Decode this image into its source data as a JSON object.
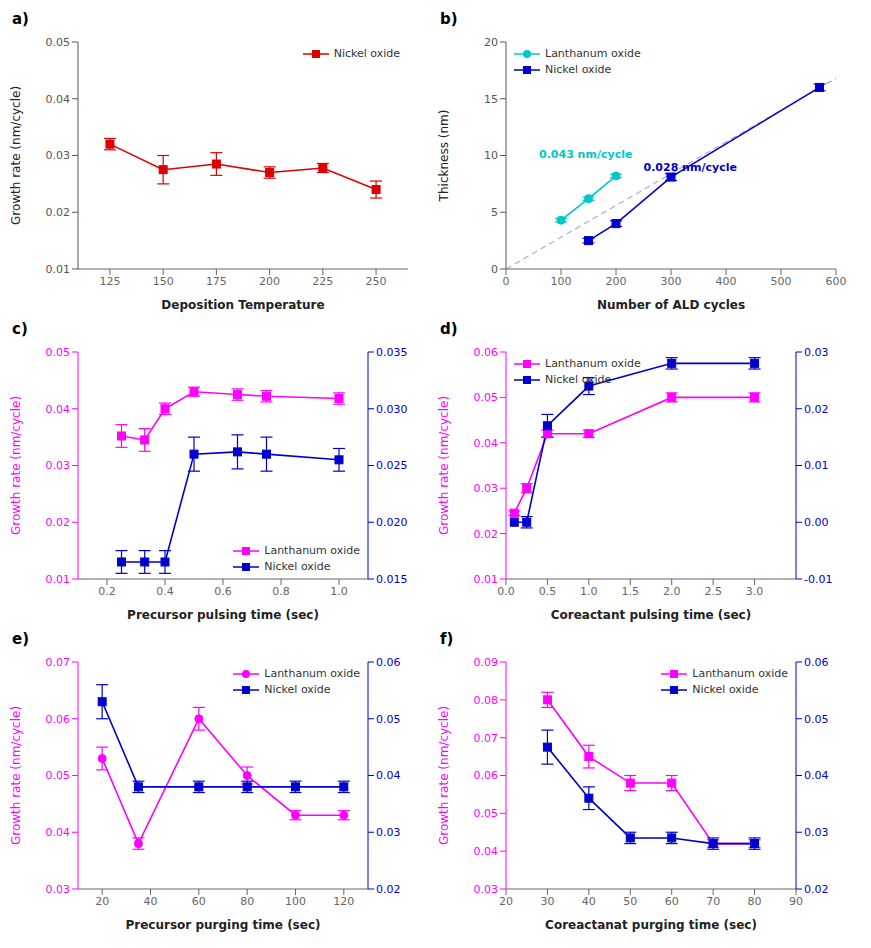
{
  "chart_data": [
    {
      "type": "line",
      "title": "a)",
      "xlabel": "Deposition Temperature",
      "ylabel": "Growth rate (nm/cycle)",
      "xlim": [
        110,
        265
      ],
      "xticks": [
        125,
        150,
        175,
        200,
        225,
        250
      ],
      "ylim": [
        0.01,
        0.05
      ],
      "yticks": [
        0.01,
        0.02,
        0.03,
        0.04,
        0.05
      ],
      "legend": "upper right",
      "series": [
        {
          "name": "Nickel oxide",
          "color": "#dd0000",
          "marker": "square",
          "x": [
            125,
            150,
            175,
            200,
            225,
            250
          ],
          "values": [
            0.032,
            0.0275,
            0.0285,
            0.027,
            0.0278,
            0.024
          ],
          "errors": [
            0.001,
            0.0025,
            0.002,
            0.001,
            0.0008,
            0.0015
          ]
        }
      ]
    },
    {
      "type": "line",
      "title": "b)",
      "xlabel": "Number of ALD cycles",
      "ylabel": "Thickness (nm)",
      "xlim": [
        0,
        600
      ],
      "xticks": [
        0,
        100,
        200,
        300,
        400,
        500,
        600
      ],
      "ylim": [
        0,
        20
      ],
      "yticks": [
        0,
        5,
        10,
        15,
        20
      ],
      "legend": "upper left",
      "series": [
        {
          "color": "#aaaadd",
          "line_style": "dashed",
          "marker": "none",
          "x": [
            0,
            600
          ],
          "values": [
            0,
            16.8
          ]
        },
        {
          "name": "Lanthanum oxide",
          "color": "#00c8c8",
          "marker": "circle",
          "x": [
            100,
            150,
            200
          ],
          "values": [
            4.3,
            6.2,
            8.2
          ],
          "errors": [
            0.15,
            0.15,
            0.15
          ]
        },
        {
          "name": "Nickel oxide",
          "color": "#0000cc",
          "marker": "square",
          "x": [
            150,
            200,
            300,
            570
          ],
          "values": [
            2.5,
            4.0,
            8.1,
            16.0
          ],
          "errors": [
            0.2,
            0.25,
            0.3,
            0.3
          ]
        }
      ],
      "annotations": [
        {
          "text": "0.043 nm/cycle",
          "x": 60,
          "y": 9.8,
          "color": "#00c8c8"
        },
        {
          "text": "0.028 nm/cycle",
          "x": 250,
          "y": 8.6,
          "color": "#0000cc"
        }
      ]
    },
    {
      "type": "line",
      "title": "c)",
      "xlabel": "Precursor pulsing time (sec)",
      "ylabel": "Growth rate (nm/cycle)",
      "xlim": [
        0.1,
        1.1
      ],
      "xticks": [
        0.2,
        0.4,
        0.6,
        0.8,
        {
          "value": 1.0,
          "label": "1.0"
        }
      ],
      "ylim": [
        0.01,
        0.05
      ],
      "yticks": [
        0.01,
        0.02,
        0.03,
        0.04,
        0.05
      ],
      "y2lim": [
        0.015,
        0.035
      ],
      "y2ticks": [
        0.015,
        {
          "value": 0.02,
          "label": "0.020"
        },
        0.025,
        {
          "value": 0.03,
          "label": "0.030"
        },
        0.035
      ],
      "legend": "lower right",
      "series": [
        {
          "name": "Lanthanum oxide",
          "color": "#ff00ff",
          "marker": "square",
          "x": [
            0.25,
            0.33,
            0.4,
            0.5,
            0.65,
            0.75,
            1.0
          ],
          "values": [
            0.0352,
            0.0345,
            0.04,
            0.043,
            0.0425,
            0.0422,
            0.0418
          ],
          "errors": [
            0.002,
            0.002,
            0.001,
            0.0008,
            0.001,
            0.001,
            0.001
          ]
        },
        {
          "name": "Nickel oxide",
          "color": "#0000cc",
          "marker": "square",
          "axis": "y2",
          "x": [
            0.25,
            0.33,
            0.4,
            0.5,
            0.65,
            0.75,
            1.0
          ],
          "values": [
            0.0165,
            0.0165,
            0.0165,
            0.026,
            0.0262,
            0.026,
            0.0255
          ],
          "errors": [
            0.001,
            0.001,
            0.001,
            0.0015,
            0.0015,
            0.0015,
            0.001
          ]
        }
      ]
    },
    {
      "type": "line",
      "title": "d)",
      "xlabel": "Coreactant pulsing time (sec)",
      "ylabel": "Growth rate (nm/cycle)",
      "xlim": [
        0.0,
        3.5
      ],
      "xticks": [
        {
          "value": 0.0,
          "label": "0.0"
        },
        0.5,
        {
          "value": 1.0,
          "label": "1.0"
        },
        1.5,
        {
          "value": 2.0,
          "label": "2.0"
        },
        2.5,
        {
          "value": 3.0,
          "label": "3.0"
        }
      ],
      "ylim": [
        0.01,
        0.06
      ],
      "yticks": [
        0.01,
        0.02,
        0.03,
        0.04,
        0.05,
        0.06
      ],
      "y2lim": [
        -0.01,
        0.03
      ],
      "y2ticks": [
        -0.01,
        {
          "value": 0.0,
          "label": "0.00"
        },
        0.01,
        0.02,
        0.03
      ],
      "legend": "upper left",
      "series": [
        {
          "name": "Lanthanum oxide",
          "color": "#ff00ff",
          "marker": "square",
          "x": [
            0.1,
            0.25,
            0.5,
            1.0,
            2.0,
            3.0
          ],
          "values": [
            0.0245,
            0.03,
            0.042,
            0.042,
            0.05,
            0.05
          ],
          "errors": [
            0.0005,
            0.001,
            0.0008,
            0.0008,
            0.001,
            0.001
          ]
        },
        {
          "name": "Nickel oxide",
          "color": "#0000cc",
          "marker": "square",
          "axis": "y2",
          "x": [
            0.1,
            0.25,
            0.5,
            1.0,
            2.0,
            3.0
          ],
          "values": [
            0.0,
            0.0,
            0.017,
            0.024,
            0.028,
            0.028
          ],
          "errors": [
            0.0,
            0.001,
            0.002,
            0.0015,
            0.001,
            0.001
          ]
        }
      ]
    },
    {
      "type": "line",
      "title": "e)",
      "xlabel": "Precursor purging time (sec)",
      "ylabel": "Growth rate (nm/cycle)",
      "xlim": [
        10,
        130
      ],
      "xticks": [
        20,
        40,
        60,
        80,
        100,
        120
      ],
      "ylim": [
        0.03,
        0.07
      ],
      "yticks": [
        0.03,
        0.04,
        0.05,
        0.06,
        0.07
      ],
      "y2lim": [
        0.02,
        0.06
      ],
      "y2ticks": [
        0.02,
        0.03,
        0.04,
        0.05,
        0.06
      ],
      "legend": "upper right",
      "series": [
        {
          "name": "Lanthanum oxide",
          "color": "#ff00ff",
          "marker": "circle",
          "x": [
            20,
            35,
            60,
            80,
            100,
            120
          ],
          "values": [
            0.053,
            0.038,
            0.06,
            0.05,
            0.043,
            0.043
          ],
          "errors": [
            0.002,
            0.001,
            0.002,
            0.0015,
            0.0008,
            0.0008
          ]
        },
        {
          "name": "Nickel oxide",
          "color": "#0000cc",
          "marker": "square",
          "axis": "y2",
          "x": [
            20,
            35,
            60,
            80,
            100,
            120
          ],
          "values": [
            0.053,
            0.038,
            0.038,
            0.038,
            0.038,
            0.038
          ],
          "errors": [
            0.003,
            0.001,
            0.001,
            0.001,
            0.001,
            0.001
          ]
        }
      ]
    },
    {
      "type": "line",
      "title": "f)",
      "xlabel": "Coreactanat purging time (sec)",
      "ylabel": "Growth rate (nm/cycle)",
      "xlim": [
        20,
        90
      ],
      "xticks": [
        20,
        30,
        40,
        50,
        60,
        70,
        80,
        90
      ],
      "ylim": [
        0.03,
        0.09
      ],
      "yticks": [
        0.03,
        0.04,
        0.05,
        0.06,
        0.07,
        0.08,
        0.09
      ],
      "y2lim": [
        0.02,
        0.06
      ],
      "y2ticks": [
        0.02,
        0.03,
        0.04,
        0.05,
        0.06
      ],
      "legend": "upper right",
      "series": [
        {
          "name": "Lanthanum oxide",
          "color": "#ff00ff",
          "marker": "square",
          "x": [
            30,
            40,
            50,
            60,
            70,
            80
          ],
          "values": [
            0.08,
            0.065,
            0.058,
            0.058,
            0.042,
            0.042
          ],
          "errors": [
            0.002,
            0.003,
            0.002,
            0.002,
            0.001,
            0.001
          ]
        },
        {
          "name": "Nickel oxide",
          "color": "#0000cc",
          "marker": "square",
          "axis": "y2",
          "x": [
            30,
            40,
            50,
            60,
            70,
            80
          ],
          "values": [
            0.045,
            0.036,
            0.029,
            0.029,
            0.028,
            0.028
          ],
          "errors": [
            0.003,
            0.002,
            0.001,
            0.001,
            0.001,
            0.001
          ]
        }
      ]
    }
  ]
}
